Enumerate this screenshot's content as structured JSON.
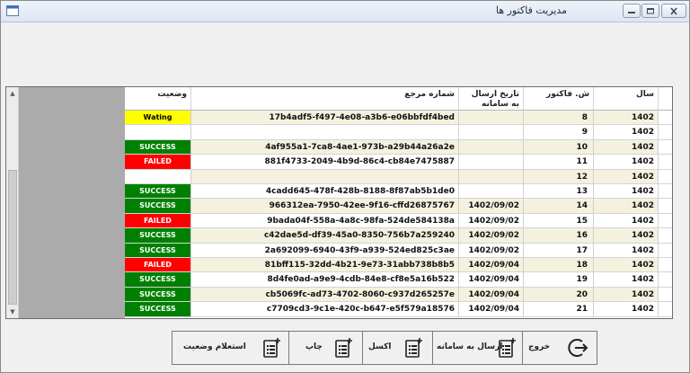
{
  "window": {
    "title": "مدیریت فاکتور ها"
  },
  "grid": {
    "headers": {
      "status": "وضعیت",
      "ref": "شماره مرجع",
      "date": "تاریخ ارسال به سامانه",
      "num": "ش. فاکتور",
      "year": "سال"
    },
    "rows": [
      {
        "status": "Wating",
        "status_color": "#ffff00",
        "status_text_color": "#000000",
        "ref": "17b4adf5-f497-4e08-a3b6-e06bbfdf4bed",
        "date": "",
        "num": "8",
        "year": "1402"
      },
      {
        "status": "",
        "status_color": "#ffffff",
        "status_text_color": "#000000",
        "ref": "",
        "date": "",
        "num": "9",
        "year": "1402"
      },
      {
        "status": "SUCCESS",
        "status_color": "#008000",
        "status_text_color": "#ffffff",
        "ref": "4af955a1-7ca8-4ae1-973b-a29b44a26a2e",
        "date": "",
        "num": "10",
        "year": "1402"
      },
      {
        "status": "FAILED",
        "status_color": "#ff0000",
        "status_text_color": "#ffffff",
        "ref": "881f4733-2049-4b9d-86c4-cb84e7475887",
        "date": "",
        "num": "11",
        "year": "1402"
      },
      {
        "status": "",
        "status_color": "#ffffff",
        "status_text_color": "#000000",
        "ref": "",
        "date": "",
        "num": "12",
        "year": "1402"
      },
      {
        "status": "SUCCESS",
        "status_color": "#008000",
        "status_text_color": "#ffffff",
        "ref": "4cadd645-478f-428b-8188-8f87ab5b1de0",
        "date": "",
        "num": "13",
        "year": "1402"
      },
      {
        "status": "SUCCESS",
        "status_color": "#008000",
        "status_text_color": "#ffffff",
        "ref": "966312ea-7950-42ee-9f16-cffd26875767",
        "date": "1402/09/02",
        "num": "14",
        "year": "1402"
      },
      {
        "status": "FAILED",
        "status_color": "#ff0000",
        "status_text_color": "#ffffff",
        "ref": "9bada04f-558a-4a8c-98fa-524de584138a",
        "date": "1402/09/02",
        "num": "15",
        "year": "1402"
      },
      {
        "status": "SUCCESS",
        "status_color": "#008000",
        "status_text_color": "#ffffff",
        "ref": "c42dae5d-df39-45a0-8350-756b7a259240",
        "date": "1402/09/02",
        "num": "16",
        "year": "1402"
      },
      {
        "status": "SUCCESS",
        "status_color": "#008000",
        "status_text_color": "#ffffff",
        "ref": "2a692099-6940-43f9-a939-524ed825c3ae",
        "date": "1402/09/02",
        "num": "17",
        "year": "1402"
      },
      {
        "status": "FAILED",
        "status_color": "#ff0000",
        "status_text_color": "#ffffff",
        "ref": "81bff115-32dd-4b21-9e73-31abb738b8b5",
        "date": "1402/09/04",
        "num": "18",
        "year": "1402"
      },
      {
        "status": "SUCCESS",
        "status_color": "#008000",
        "status_text_color": "#ffffff",
        "ref": "8d4fe0ad-a9e9-4cdb-84e8-cf8e5a16b522",
        "date": "1402/09/04",
        "num": "19",
        "year": "1402"
      },
      {
        "status": "SUCCESS",
        "status_color": "#008000",
        "status_text_color": "#ffffff",
        "ref": "cb5069fc-ad73-4702-8060-c937d265257e",
        "date": "1402/09/04",
        "num": "20",
        "year": "1402"
      },
      {
        "status": "SUCCESS",
        "status_color": "#008000",
        "status_text_color": "#ffffff",
        "ref": "c7709cd3-9c1e-420c-b647-e5f579a18576",
        "date": "1402/09/04",
        "num": "21",
        "year": "1402"
      }
    ]
  },
  "toolbar": {
    "inquiry_label": "استعلام وضعیت",
    "print_label": "چاپ",
    "excel_label": "اکسل",
    "send_label": "ارسال به سامانه",
    "exit_label": "خروج",
    "inquiry_icon": "document-list-icon",
    "print_icon": "document-list-icon",
    "excel_icon": "document-list-icon",
    "send_icon": "document-list-icon",
    "exit_icon": "exit-arrow-icon"
  }
}
